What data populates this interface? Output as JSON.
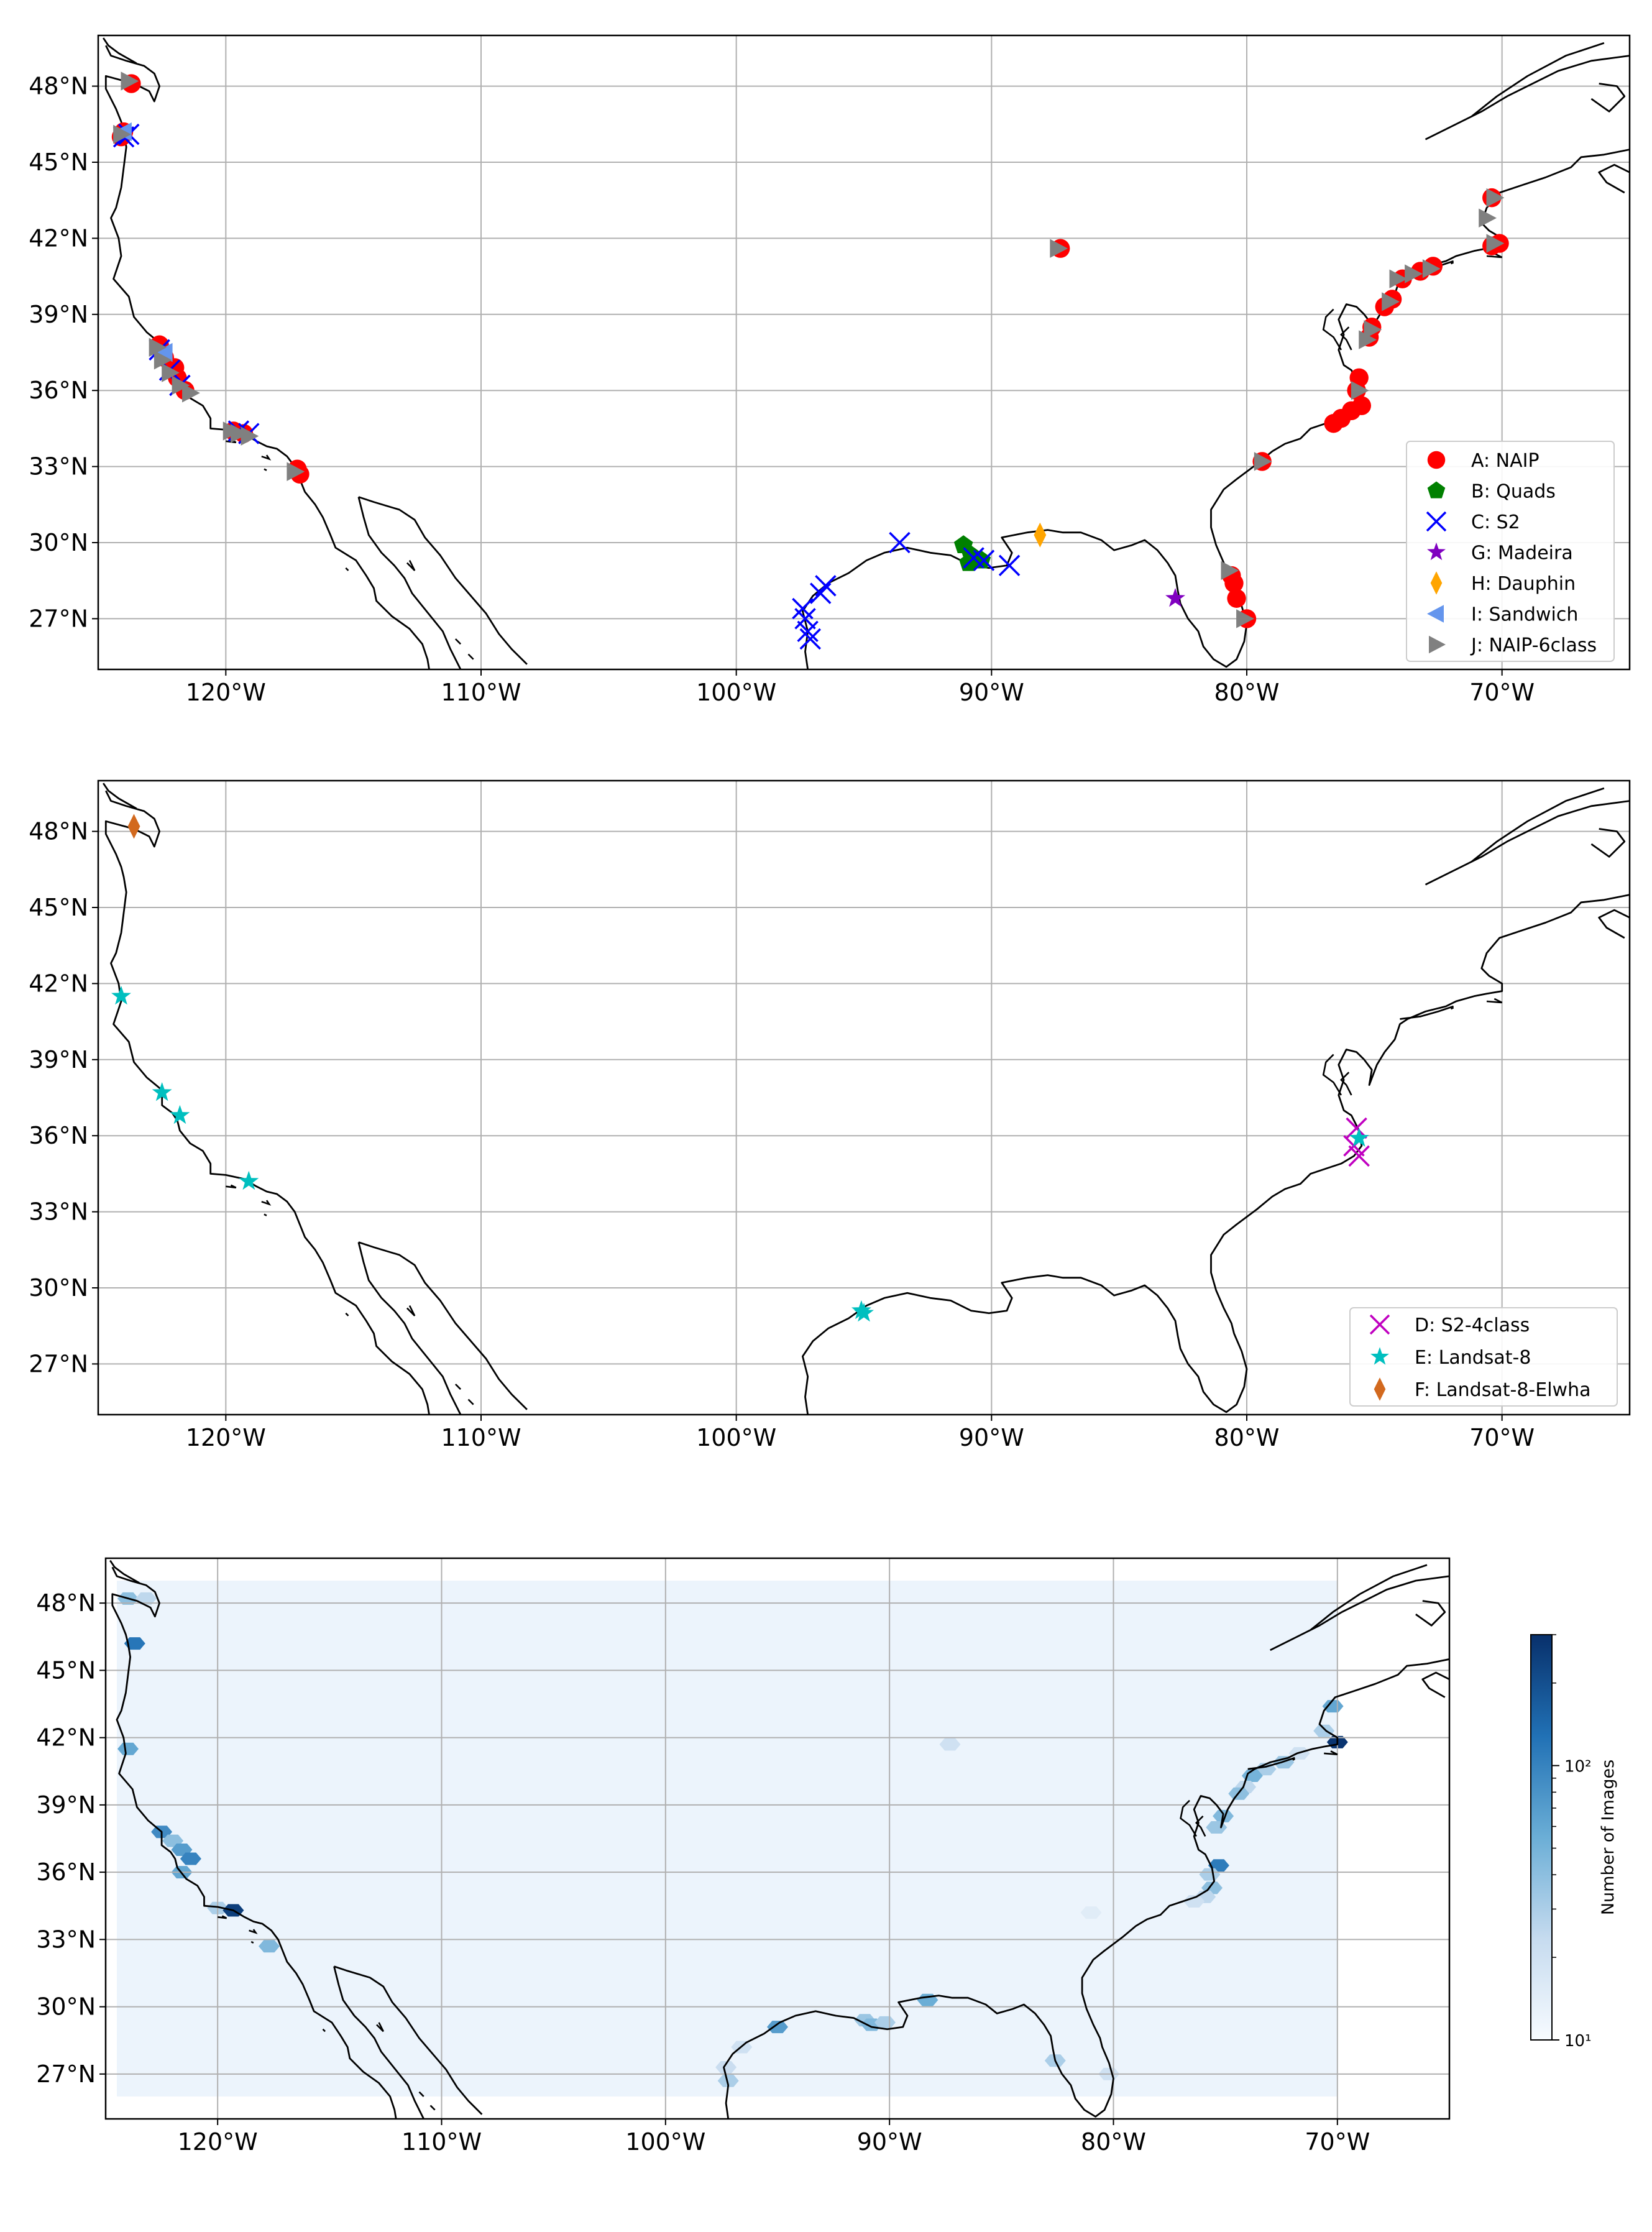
{
  "chart_data": [
    {
      "type": "scatter",
      "title": "",
      "xlabel": "",
      "ylabel": "",
      "xlim": [
        -125,
        -65
      ],
      "ylim": [
        25,
        50
      ],
      "grid": true,
      "legend_position": "lower-right",
      "xticks": [
        "120°W",
        "110°W",
        "100°W",
        "90°W",
        "80°W",
        "70°W"
      ],
      "yticks": [
        "27°N",
        "30°N",
        "33°N",
        "36°N",
        "39°N",
        "42°N",
        "45°N",
        "48°N"
      ],
      "series": [
        {
          "name": "A: NAIP",
          "marker": "circle",
          "color": "#ff0000",
          "points": [
            [
              -123.7,
              48.1
            ],
            [
              -124.0,
              46.2
            ],
            [
              -124.1,
              46.0
            ],
            [
              -122.6,
              37.8
            ],
            [
              -122.4,
              37.3
            ],
            [
              -122.0,
              36.9
            ],
            [
              -121.9,
              36.5
            ],
            [
              -121.6,
              36.0
            ],
            [
              -119.7,
              34.4
            ],
            [
              -119.3,
              34.3
            ],
            [
              -117.2,
              32.9
            ],
            [
              -117.1,
              32.7
            ],
            [
              -87.3,
              41.6
            ],
            [
              -70.4,
              41.7
            ],
            [
              -70.1,
              41.8
            ],
            [
              -70.4,
              43.6
            ],
            [
              -72.7,
              40.9
            ],
            [
              -73.2,
              40.7
            ],
            [
              -73.9,
              40.4
            ],
            [
              -74.3,
              39.6
            ],
            [
              -74.6,
              39.3
            ],
            [
              -75.1,
              38.5
            ],
            [
              -75.2,
              38.1
            ],
            [
              -75.6,
              36.5
            ],
            [
              -75.7,
              36.0
            ],
            [
              -75.5,
              35.4
            ],
            [
              -75.9,
              35.2
            ],
            [
              -76.3,
              34.9
            ],
            [
              -76.6,
              34.7
            ],
            [
              -79.4,
              33.2
            ],
            [
              -80.6,
              28.7
            ],
            [
              -80.5,
              28.4
            ],
            [
              -80.4,
              27.8
            ],
            [
              -80.0,
              27.0
            ]
          ]
        },
        {
          "name": "B: Quads",
          "marker": "pentagon",
          "color": "#008000",
          "points": [
            [
              -91.1,
              29.9
            ],
            [
              -90.8,
              29.5
            ],
            [
              -90.9,
              29.2
            ],
            [
              -90.4,
              29.3
            ],
            [
              -90.7,
              29.4
            ]
          ]
        },
        {
          "name": "C: S2",
          "marker": "x",
          "color": "#0000ff",
          "points": [
            [
              -123.8,
              46.1
            ],
            [
              -124.0,
              46.0
            ],
            [
              -122.6,
              37.6
            ],
            [
              -122.2,
              36.8
            ],
            [
              -121.8,
              36.2
            ],
            [
              -119.5,
              34.4
            ],
            [
              -119.1,
              34.3
            ],
            [
              -97.4,
              27.4
            ],
            [
              -97.3,
              27.0
            ],
            [
              -97.2,
              26.5
            ],
            [
              -97.1,
              26.2
            ],
            [
              -96.7,
              28.0
            ],
            [
              -96.5,
              28.3
            ],
            [
              -93.6,
              30.0
            ],
            [
              -90.7,
              29.4
            ],
            [
              -90.3,
              29.3
            ],
            [
              -89.3,
              29.1
            ]
          ]
        },
        {
          "name": "G: Madeira",
          "marker": "star",
          "color": "#8000c0",
          "points": [
            [
              -82.8,
              27.8
            ]
          ]
        },
        {
          "name": "H: Dauphin",
          "marker": "diamond",
          "color": "#ffa500",
          "points": [
            [
              -88.1,
              30.3
            ]
          ]
        },
        {
          "name": "I: Sandwich",
          "marker": "triangle-left",
          "color": "#6495ed",
          "points": [
            [
              -124.0,
              46.2
            ],
            [
              -122.4,
              37.5
            ]
          ]
        },
        {
          "name": "J: NAIP-6class",
          "marker": "triangle-right",
          "color": "#808080",
          "points": [
            [
              -123.8,
              48.2
            ],
            [
              -124.1,
              46.1
            ],
            [
              -122.7,
              37.7
            ],
            [
              -122.5,
              37.2
            ],
            [
              -122.2,
              36.7
            ],
            [
              -121.8,
              36.2
            ],
            [
              -121.4,
              35.9
            ],
            [
              -119.8,
              34.4
            ],
            [
              -119.5,
              34.3
            ],
            [
              -119.1,
              34.2
            ],
            [
              -117.3,
              32.8
            ],
            [
              -87.4,
              41.6
            ],
            [
              -70.6,
              42.8
            ],
            [
              -70.3,
              43.6
            ],
            [
              -70.3,
              41.8
            ],
            [
              -72.8,
              40.8
            ],
            [
              -73.5,
              40.6
            ],
            [
              -74.1,
              40.4
            ],
            [
              -74.4,
              39.5
            ],
            [
              -75.1,
              38.4
            ],
            [
              -75.3,
              38.0
            ],
            [
              -75.6,
              36.0
            ],
            [
              -79.4,
              33.2
            ],
            [
              -80.7,
              28.9
            ],
            [
              -80.1,
              27.0
            ]
          ]
        }
      ]
    },
    {
      "type": "scatter",
      "title": "",
      "xlabel": "",
      "ylabel": "",
      "xlim": [
        -125,
        -65
      ],
      "ylim": [
        25,
        50
      ],
      "grid": true,
      "legend_position": "lower-right",
      "xticks": [
        "120°W",
        "110°W",
        "100°W",
        "90°W",
        "80°W",
        "70°W"
      ],
      "yticks": [
        "27°N",
        "30°N",
        "33°N",
        "36°N",
        "39°N",
        "42°N",
        "45°N",
        "48°N"
      ],
      "series": [
        {
          "name": "D: S2-4class",
          "marker": "x",
          "color": "#c000c0",
          "points": [
            [
              -75.7,
              36.3
            ],
            [
              -75.6,
              35.2
            ],
            [
              -75.8,
              35.6
            ]
          ]
        },
        {
          "name": "E: Landsat-8",
          "marker": "star",
          "color": "#00bfbf",
          "points": [
            [
              -124.1,
              41.5
            ],
            [
              -122.5,
              37.7
            ],
            [
              -121.8,
              36.8
            ],
            [
              -119.1,
              34.2
            ],
            [
              -95.1,
              29.1
            ],
            [
              -95.0,
              29.0
            ],
            [
              -75.6,
              35.9
            ]
          ]
        },
        {
          "name": "F: Landsat-8-Elwha",
          "marker": "diamond",
          "color": "#d2691e",
          "points": [
            [
              -123.6,
              48.2
            ]
          ]
        }
      ]
    },
    {
      "type": "heatmap",
      "title": "",
      "xlabel": "",
      "ylabel": "",
      "xlim": [
        -125,
        -65
      ],
      "ylim": [
        25,
        50
      ],
      "grid": true,
      "scale": "log",
      "colorbar_label": "Number of Images",
      "colorbar_ticks": [
        "10¹",
        "10²"
      ],
      "colorbar_range": [
        10,
        300
      ],
      "xticks": [
        "120°W",
        "110°W",
        "100°W",
        "90°W",
        "80°W",
        "70°W"
      ],
      "yticks": [
        "27°N",
        "30°N",
        "33°N",
        "36°N",
        "39°N",
        "42°N",
        "45°N",
        "48°N"
      ],
      "background_value": 12,
      "background_extent": {
        "lon": [
          -124.5,
          -70.0
        ],
        "lat": [
          26.0,
          49.0
        ]
      },
      "cells": [
        [
          -124.0,
          48.2,
          40
        ],
        [
          -123.2,
          48.2,
          25
        ],
        [
          -123.7,
          46.2,
          120
        ],
        [
          -124.0,
          41.5,
          60
        ],
        [
          -122.5,
          37.8,
          90
        ],
        [
          -122.0,
          37.4,
          40
        ],
        [
          -121.6,
          37.0,
          70
        ],
        [
          -121.2,
          36.6,
          100
        ],
        [
          -121.6,
          36.0,
          60
        ],
        [
          -120.0,
          34.4,
          30
        ],
        [
          -119.3,
          34.3,
          250
        ],
        [
          -117.7,
          32.7,
          45
        ],
        [
          -87.3,
          41.7,
          20
        ],
        [
          -70.0,
          41.8,
          280
        ],
        [
          -70.6,
          42.3,
          30
        ],
        [
          -70.2,
          43.4,
          60
        ],
        [
          -71.7,
          41.3,
          20
        ],
        [
          -72.4,
          40.9,
          35
        ],
        [
          -73.2,
          40.6,
          30
        ],
        [
          -73.8,
          40.3,
          50
        ],
        [
          -74.1,
          39.8,
          25
        ],
        [
          -74.4,
          39.5,
          40
        ],
        [
          -75.1,
          38.5,
          45
        ],
        [
          -75.4,
          38.0,
          35
        ],
        [
          -75.3,
          36.3,
          110
        ],
        [
          -75.7,
          35.9,
          30
        ],
        [
          -75.6,
          35.3,
          40
        ],
        [
          -75.9,
          34.9,
          25
        ],
        [
          -76.4,
          34.7,
          20
        ],
        [
          -81.0,
          34.2,
          15
        ],
        [
          -97.3,
          27.3,
          22
        ],
        [
          -97.2,
          26.7,
          30
        ],
        [
          -96.6,
          28.2,
          20
        ],
        [
          -95.0,
          29.1,
          70
        ],
        [
          -91.1,
          29.4,
          35
        ],
        [
          -90.8,
          29.2,
          45
        ],
        [
          -90.2,
          29.3,
          30
        ],
        [
          -88.3,
          30.3,
          55
        ],
        [
          -82.6,
          27.6,
          30
        ],
        [
          -80.2,
          27.0,
          20
        ]
      ]
    }
  ]
}
